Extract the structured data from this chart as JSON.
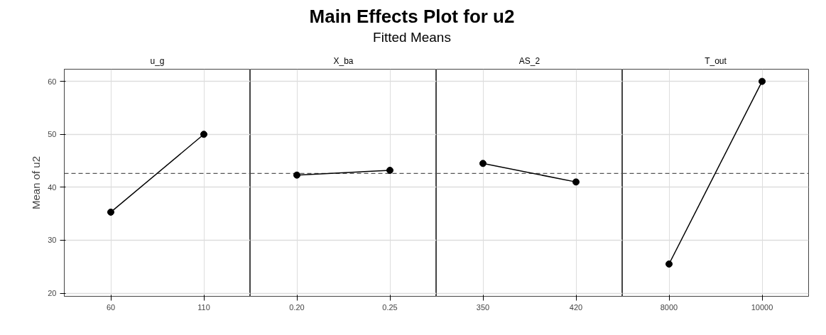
{
  "chart_data": [
    {
      "type": "other",
      "title": "Main Effects Plot for u2",
      "subtitle": "Fitted Means"
    },
    {
      "type": "line",
      "xlabel": "u_g",
      "ylabel": "Mean of u2",
      "categories": [
        "60",
        "110"
      ],
      "series": [
        {
          "color": "#000000",
          "values": [
            35.3,
            50.0
          ]
        }
      ],
      "ylim": [
        19.4,
        62.3
      ],
      "yticks": [
        20,
        30,
        40,
        50,
        60
      ],
      "grid": true,
      "marker": "circle",
      "line_style": "solid",
      "ref_lines": [
        {
          "axis": "y",
          "value": 42.6,
          "color": "#555555",
          "line_style": "dashed"
        }
      ]
    },
    {
      "type": "line",
      "xlabel": "X_ba",
      "categories": [
        "0.20",
        "0.25"
      ],
      "series": [
        {
          "color": "#000000",
          "values": [
            42.3,
            43.2
          ]
        }
      ],
      "ylim": [
        19.4,
        62.3
      ],
      "yticks": [
        20,
        30,
        40,
        50,
        60
      ],
      "grid": true,
      "marker": "circle",
      "line_style": "solid",
      "tick_labels": "x",
      "ref_lines": [
        {
          "axis": "y",
          "value": 42.6,
          "color": "#555555",
          "line_style": "dashed"
        }
      ]
    },
    {
      "type": "line",
      "xlabel": "AS_2",
      "categories": [
        "350",
        "420"
      ],
      "series": [
        {
          "color": "#000000",
          "values": [
            44.5,
            41.0
          ]
        }
      ],
      "ylim": [
        19.4,
        62.3
      ],
      "yticks": [
        20,
        30,
        40,
        50,
        60
      ],
      "grid": true,
      "marker": "circle",
      "line_style": "solid",
      "tick_labels": "x",
      "ref_lines": [
        {
          "axis": "y",
          "value": 42.6,
          "color": "#555555",
          "line_style": "dashed"
        }
      ]
    },
    {
      "type": "line",
      "xlabel": "T_out",
      "categories": [
        "8000",
        "10000"
      ],
      "series": [
        {
          "color": "#000000",
          "values": [
            25.5,
            60.0
          ]
        }
      ],
      "ylim": [
        19.4,
        62.3
      ],
      "yticks": [
        20,
        30,
        40,
        50,
        60
      ],
      "grid": true,
      "marker": "circle",
      "line_style": "solid",
      "tick_labels": "x",
      "ref_lines": [
        {
          "axis": "y",
          "value": 42.6,
          "color": "#555555",
          "line_style": "dashed"
        }
      ]
    }
  ]
}
